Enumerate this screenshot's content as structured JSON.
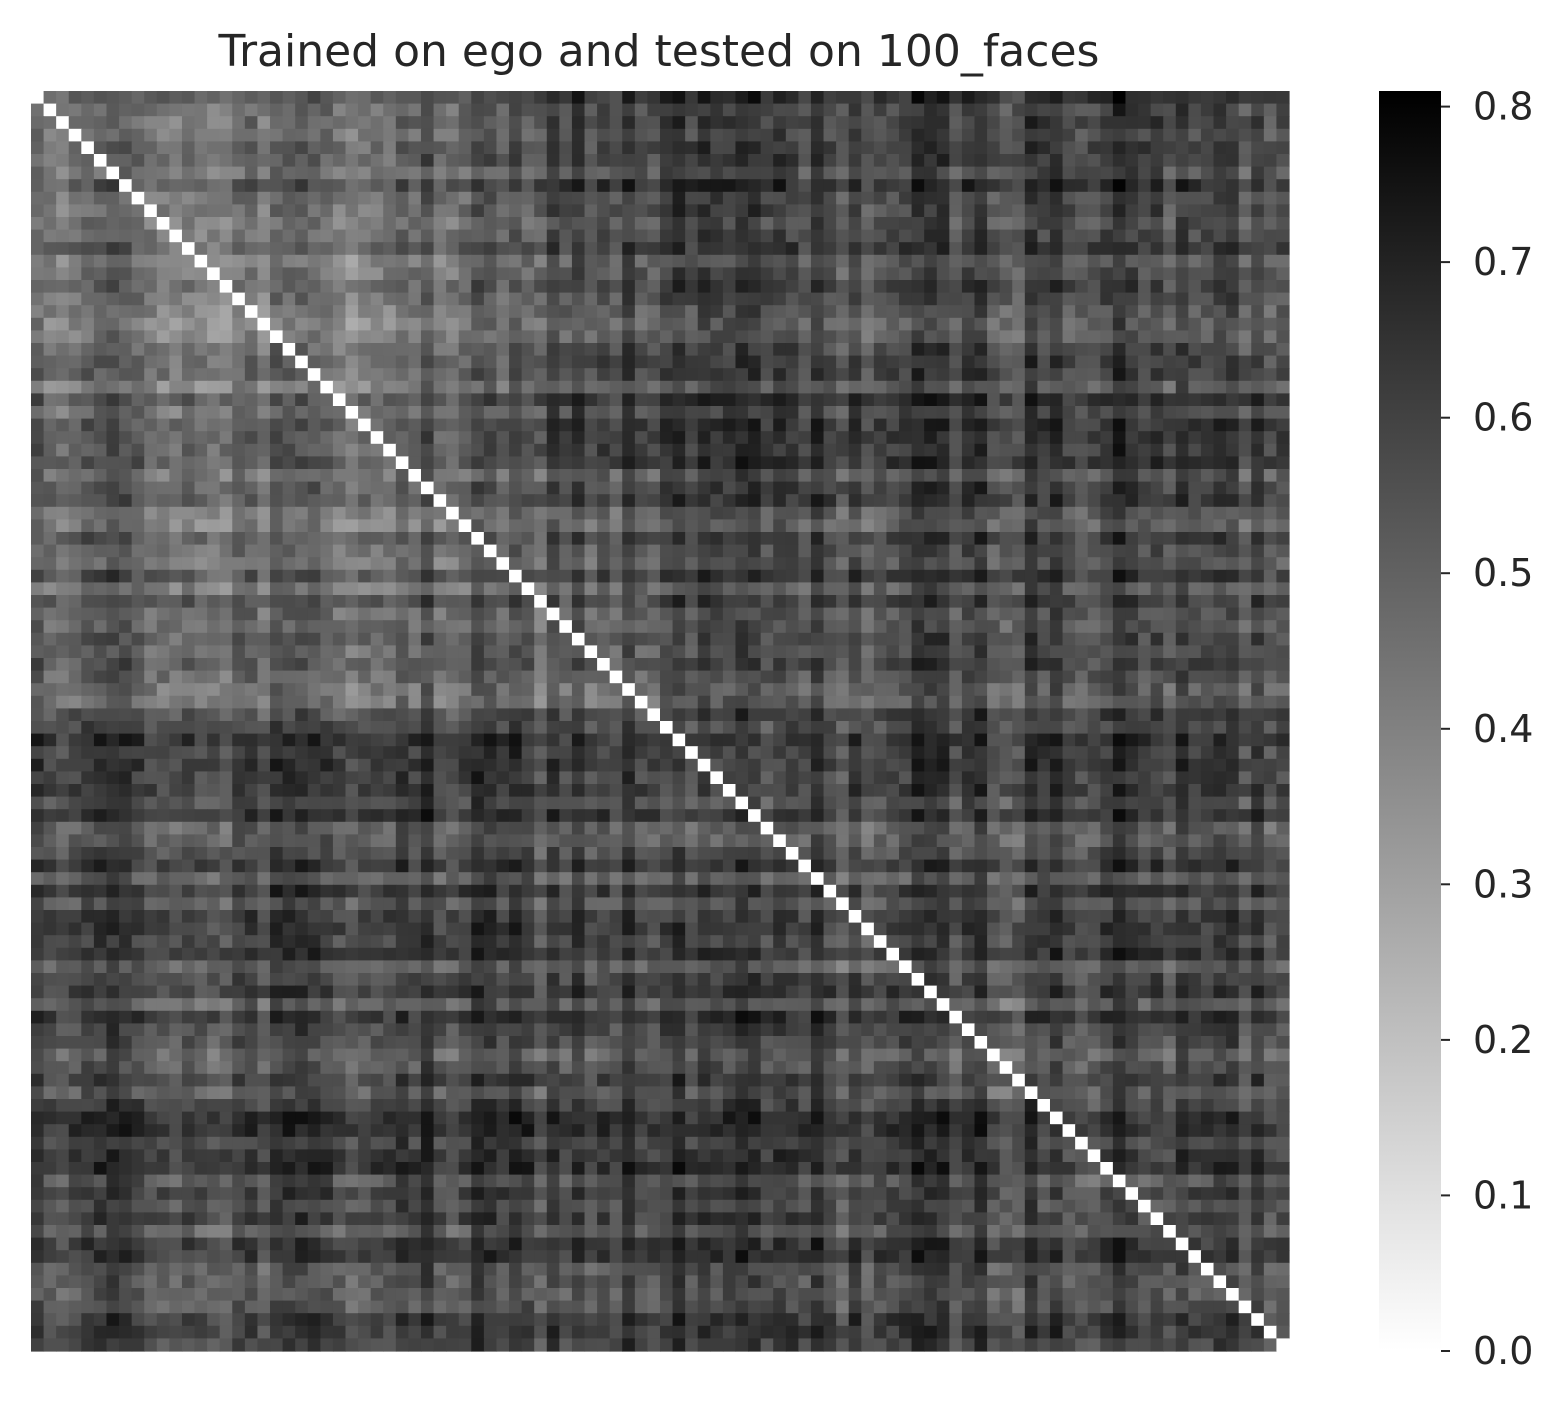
{
  "chart_data": {
    "type": "heatmap",
    "title": "Trained on ego and tested on 100_faces",
    "xlabel": "",
    "ylabel": "",
    "rows": 100,
    "cols": 100,
    "show_axis_ticks": false,
    "diagonal_value": 0.0,
    "colormap": "Greys",
    "colormap_low_color": "#ffffff",
    "colormap_high_color": "#000000",
    "value_range": [
      0.0,
      0.81
    ],
    "colorbar": {
      "position": "right",
      "ticks": [
        0.0,
        0.1,
        0.2,
        0.3,
        0.4,
        0.5,
        0.6,
        0.7,
        0.8
      ],
      "tick_labels": [
        "0.0",
        "0.1",
        "0.2",
        "0.3",
        "0.4",
        "0.5",
        "0.6",
        "0.7",
        "0.8"
      ]
    },
    "matrix_description": "Symmetric-like dissimilarity matrix; near-zero diagonal; overall values mostly 0.35-0.7; lighter block upper-left, darker lower region",
    "block_means": [
      [
        0.44,
        0.42,
        0.43,
        0.47,
        0.56,
        0.6,
        0.55,
        0.58,
        0.6,
        0.55
      ],
      [
        0.46,
        0.4,
        0.42,
        0.46,
        0.55,
        0.58,
        0.55,
        0.57,
        0.58,
        0.55
      ],
      [
        0.45,
        0.42,
        0.41,
        0.45,
        0.55,
        0.57,
        0.55,
        0.57,
        0.57,
        0.55
      ],
      [
        0.48,
        0.44,
        0.43,
        0.45,
        0.52,
        0.56,
        0.54,
        0.56,
        0.56,
        0.53
      ],
      [
        0.5,
        0.47,
        0.47,
        0.48,
        0.5,
        0.55,
        0.53,
        0.56,
        0.56,
        0.54
      ],
      [
        0.58,
        0.56,
        0.57,
        0.58,
        0.57,
        0.52,
        0.55,
        0.57,
        0.58,
        0.56
      ],
      [
        0.56,
        0.54,
        0.55,
        0.56,
        0.55,
        0.55,
        0.52,
        0.55,
        0.57,
        0.55
      ],
      [
        0.55,
        0.53,
        0.54,
        0.55,
        0.56,
        0.57,
        0.56,
        0.52,
        0.56,
        0.55
      ],
      [
        0.58,
        0.56,
        0.57,
        0.58,
        0.57,
        0.58,
        0.57,
        0.57,
        0.53,
        0.55
      ],
      [
        0.54,
        0.52,
        0.53,
        0.54,
        0.55,
        0.56,
        0.55,
        0.55,
        0.55,
        0.53
      ]
    ]
  }
}
